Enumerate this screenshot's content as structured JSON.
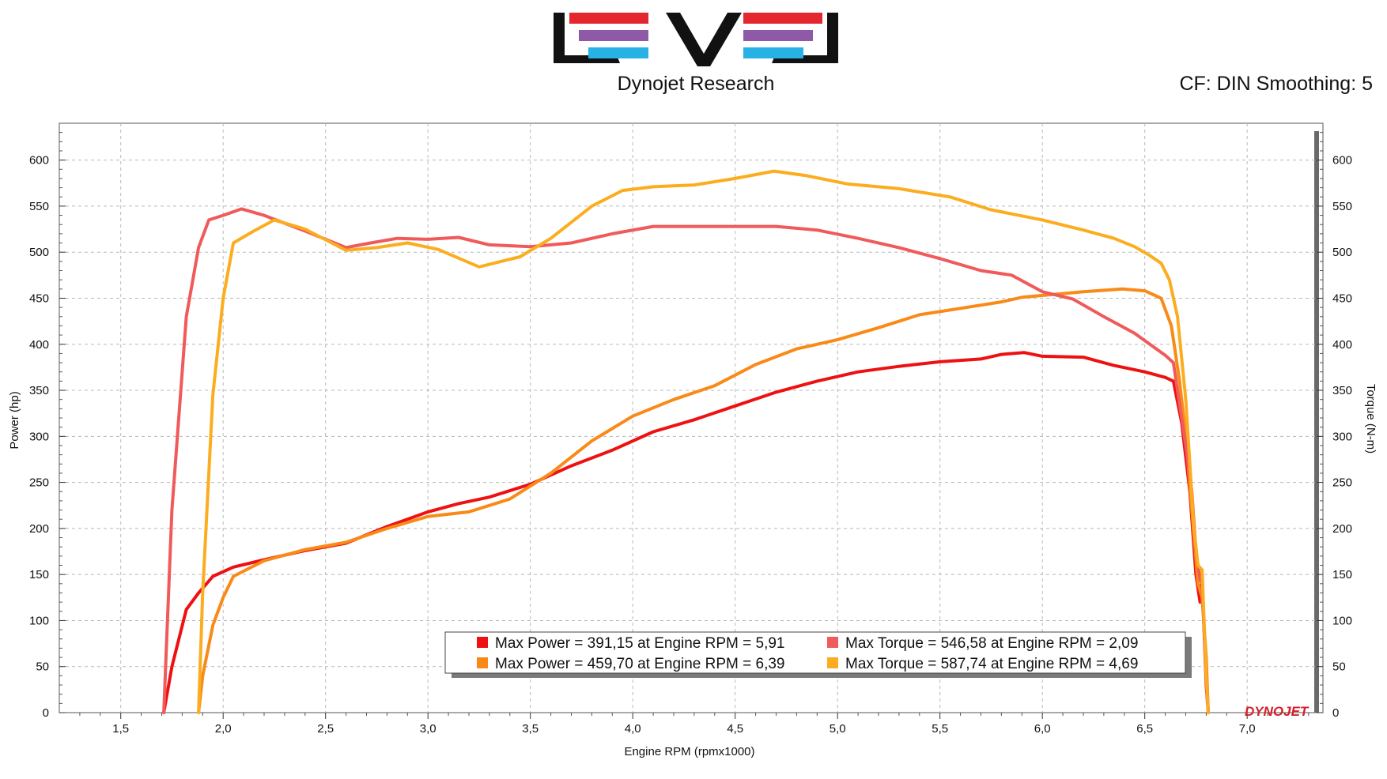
{
  "header": {
    "subtitle": "Dynojet Research",
    "settings_text": "CF: DIN Smoothing: 5",
    "watermark_text": "DYNOJET"
  },
  "colors": {
    "power_run1": "#ee1111",
    "power_run2": "#f98a17",
    "torque_run1": "#f05a5a",
    "torque_run2": "#fbad1f",
    "grid": "#b8b8b8",
    "logo_red": "#e4262e",
    "logo_purple": "#8e5aa8",
    "logo_blue": "#27b2e6",
    "logo_black": "#111111"
  },
  "chart_data": {
    "type": "line",
    "xlabel": "Engine RPM (rpmx1000)",
    "ylabel_left": "Power (hp)",
    "ylabel_right": "Torque (N-m)",
    "xlim": [
      1.2,
      7.37
    ],
    "ylim": [
      0,
      640
    ],
    "x_ticks": [
      "1,5",
      "2,0",
      "2,5",
      "3,0",
      "3,5",
      "4,0",
      "4,5",
      "5,0",
      "5,5",
      "6,0",
      "6,5",
      "7,0"
    ],
    "x_tick_values": [
      1.5,
      2.0,
      2.5,
      3.0,
      3.5,
      4.0,
      4.5,
      5.0,
      5.5,
      6.0,
      6.5,
      7.0
    ],
    "y_ticks_left": [
      "0",
      "50",
      "100",
      "150",
      "200",
      "250",
      "300",
      "350",
      "400",
      "450",
      "500",
      "550",
      "600"
    ],
    "y_ticks_right": [
      "0",
      "50",
      "100",
      "150",
      "200",
      "250",
      "300",
      "350",
      "400",
      "450",
      "500",
      "550",
      "600"
    ],
    "y_tick_values": [
      0,
      50,
      100,
      150,
      200,
      250,
      300,
      350,
      400,
      450,
      500,
      550,
      600
    ],
    "grid": true,
    "legend_position": "bottom-center",
    "series": [
      {
        "name": "Max Power = 391,15 at Engine RPM = 5,91",
        "axis": "left",
        "color": "#ee1111",
        "points": [
          [
            1.71,
            0
          ],
          [
            1.75,
            50
          ],
          [
            1.82,
            112
          ],
          [
            1.88,
            130
          ],
          [
            1.95,
            148
          ],
          [
            2.05,
            158
          ],
          [
            2.2,
            166
          ],
          [
            2.4,
            176
          ],
          [
            2.6,
            184
          ],
          [
            2.8,
            202
          ],
          [
            3.0,
            218
          ],
          [
            3.15,
            227
          ],
          [
            3.3,
            234
          ],
          [
            3.5,
            248
          ],
          [
            3.7,
            268
          ],
          [
            3.9,
            285
          ],
          [
            4.1,
            305
          ],
          [
            4.3,
            318
          ],
          [
            4.5,
            333
          ],
          [
            4.7,
            348
          ],
          [
            4.9,
            360
          ],
          [
            5.1,
            370
          ],
          [
            5.3,
            376
          ],
          [
            5.5,
            381
          ],
          [
            5.7,
            384
          ],
          [
            5.8,
            389
          ],
          [
            5.91,
            391
          ],
          [
            6.0,
            387
          ],
          [
            6.2,
            386
          ],
          [
            6.35,
            377
          ],
          [
            6.5,
            370
          ],
          [
            6.6,
            364
          ],
          [
            6.64,
            360
          ],
          [
            6.68,
            315
          ],
          [
            6.72,
            240
          ],
          [
            6.75,
            150
          ],
          [
            6.77,
            120
          ],
          [
            6.78,
            145
          ],
          [
            6.8,
            30
          ],
          [
            6.81,
            0
          ]
        ]
      },
      {
        "name": "Max Power = 459,70 at Engine RPM = 6,39",
        "axis": "left",
        "color": "#f98a17",
        "points": [
          [
            1.88,
            0
          ],
          [
            1.9,
            40
          ],
          [
            1.95,
            95
          ],
          [
            2.0,
            125
          ],
          [
            2.05,
            148
          ],
          [
            2.2,
            165
          ],
          [
            2.4,
            177
          ],
          [
            2.6,
            185
          ],
          [
            2.8,
            200
          ],
          [
            3.0,
            213
          ],
          [
            3.2,
            218
          ],
          [
            3.4,
            232
          ],
          [
            3.6,
            260
          ],
          [
            3.8,
            295
          ],
          [
            4.0,
            322
          ],
          [
            4.2,
            340
          ],
          [
            4.4,
            355
          ],
          [
            4.6,
            378
          ],
          [
            4.8,
            395
          ],
          [
            5.0,
            405
          ],
          [
            5.2,
            418
          ],
          [
            5.4,
            432
          ],
          [
            5.6,
            439
          ],
          [
            5.8,
            446
          ],
          [
            5.9,
            451
          ],
          [
            6.1,
            455
          ],
          [
            6.2,
            457
          ],
          [
            6.39,
            460
          ],
          [
            6.5,
            458
          ],
          [
            6.58,
            450
          ],
          [
            6.63,
            420
          ],
          [
            6.67,
            360
          ],
          [
            6.7,
            300
          ],
          [
            6.73,
            220
          ],
          [
            6.76,
            140
          ],
          [
            6.78,
            125
          ],
          [
            6.8,
            60
          ],
          [
            6.81,
            0
          ]
        ]
      },
      {
        "name": "Max Torque = 546,58 at Engine RPM = 2,09",
        "axis": "right",
        "color": "#f05a5a",
        "points": [
          [
            1.71,
            0
          ],
          [
            1.75,
            220
          ],
          [
            1.82,
            430
          ],
          [
            1.88,
            505
          ],
          [
            1.93,
            535
          ],
          [
            2.0,
            540
          ],
          [
            2.09,
            547
          ],
          [
            2.2,
            540
          ],
          [
            2.4,
            523
          ],
          [
            2.6,
            505
          ],
          [
            2.72,
            510
          ],
          [
            2.85,
            515
          ],
          [
            3.0,
            514
          ],
          [
            3.15,
            516
          ],
          [
            3.3,
            508
          ],
          [
            3.5,
            506
          ],
          [
            3.7,
            510
          ],
          [
            3.9,
            520
          ],
          [
            4.1,
            528
          ],
          [
            4.3,
            528
          ],
          [
            4.5,
            528
          ],
          [
            4.7,
            528
          ],
          [
            4.9,
            524
          ],
          [
            5.1,
            515
          ],
          [
            5.3,
            505
          ],
          [
            5.5,
            493
          ],
          [
            5.7,
            480
          ],
          [
            5.85,
            475
          ],
          [
            6.0,
            457
          ],
          [
            6.15,
            449
          ],
          [
            6.3,
            430
          ],
          [
            6.45,
            412
          ],
          [
            6.6,
            388
          ],
          [
            6.64,
            380
          ],
          [
            6.66,
            350
          ],
          [
            6.7,
            290
          ],
          [
            6.73,
            240
          ],
          [
            6.75,
            175
          ],
          [
            6.77,
            145
          ],
          [
            6.78,
            140
          ],
          [
            6.8,
            40
          ],
          [
            6.81,
            0
          ]
        ]
      },
      {
        "name": "Max Torque = 587,74 at Engine RPM = 4,69",
        "axis": "right",
        "color": "#fbad1f",
        "points": [
          [
            1.88,
            0
          ],
          [
            1.9,
            130
          ],
          [
            1.95,
            345
          ],
          [
            2.0,
            450
          ],
          [
            2.05,
            510
          ],
          [
            2.15,
            523
          ],
          [
            2.25,
            535
          ],
          [
            2.4,
            525
          ],
          [
            2.6,
            502
          ],
          [
            2.75,
            505
          ],
          [
            2.9,
            510
          ],
          [
            3.05,
            503
          ],
          [
            3.25,
            484
          ],
          [
            3.45,
            495
          ],
          [
            3.6,
            515
          ],
          [
            3.8,
            550
          ],
          [
            3.95,
            567
          ],
          [
            4.1,
            571
          ],
          [
            4.3,
            573
          ],
          [
            4.5,
            580
          ],
          [
            4.69,
            588
          ],
          [
            4.85,
            583
          ],
          [
            5.05,
            574
          ],
          [
            5.3,
            569
          ],
          [
            5.55,
            560
          ],
          [
            5.75,
            546
          ],
          [
            6.0,
            535
          ],
          [
            6.2,
            524
          ],
          [
            6.35,
            515
          ],
          [
            6.45,
            506
          ],
          [
            6.52,
            497
          ],
          [
            6.58,
            488
          ],
          [
            6.62,
            470
          ],
          [
            6.66,
            430
          ],
          [
            6.7,
            340
          ],
          [
            6.72,
            270
          ],
          [
            6.74,
            200
          ],
          [
            6.76,
            160
          ],
          [
            6.78,
            155
          ],
          [
            6.8,
            40
          ],
          [
            6.81,
            0
          ]
        ]
      }
    ]
  }
}
